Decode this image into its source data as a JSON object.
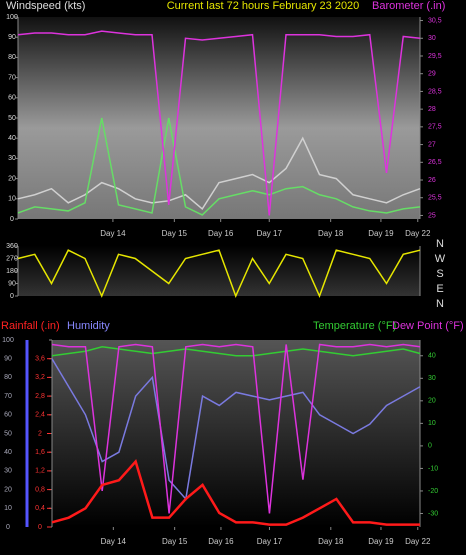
{
  "chart_data": [
    {
      "type": "line",
      "title": "Current last 72 hours February 23 2020",
      "ylabel": "Windspeed (kts)",
      "y2label": "Barometer (.in)",
      "x": [
        0,
        3,
        6,
        9,
        12,
        15,
        18,
        21,
        24,
        27,
        30,
        33,
        36,
        39,
        42,
        45,
        48,
        51,
        54,
        57,
        60,
        63,
        66,
        69,
        72
      ],
      "xlim": [
        0,
        72
      ],
      "xticks": [
        {
          "value": 17,
          "label": "Day 14"
        },
        {
          "value": 28,
          "label": "Day 15"
        },
        {
          "value": 36.3,
          "label": "Day 16"
        },
        {
          "value": 45,
          "label": "Day 17"
        },
        {
          "value": 56,
          "label": "Day 18"
        },
        {
          "value": 65,
          "label": "Day 19"
        },
        {
          "value": 71.6,
          "label": "Day 22"
        }
      ],
      "ylim": [
        0,
        100
      ],
      "yticks": [
        0,
        10,
        20,
        30,
        40,
        50,
        60,
        70,
        80,
        90,
        100
      ],
      "y2lim": [
        24.9,
        30.6
      ],
      "y2ticks": [
        25,
        {
          "value": 25.5,
          "label": "25,5"
        },
        26,
        {
          "value": 26.5,
          "label": "26,5"
        },
        27,
        {
          "value": 27.5,
          "label": "27,5"
        },
        28,
        {
          "value": 28.5,
          "label": "28,5"
        },
        29,
        {
          "value": 29.5,
          "label": "29,5"
        },
        30,
        {
          "value": 30.5,
          "label": "30,5"
        }
      ],
      "series": [
        {
          "color": "#d0d0d0",
          "values": [
            10,
            12,
            15,
            8,
            12,
            18,
            15,
            10,
            8,
            9,
            12,
            5,
            18,
            20,
            22,
            18,
            25,
            40,
            22,
            20,
            12,
            10,
            8,
            12,
            15
          ]
        },
        {
          "color": "#66dd66",
          "values": [
            3,
            6,
            5,
            4,
            8,
            50,
            7,
            5,
            3,
            50,
            6,
            2,
            10,
            12,
            14,
            12,
            15,
            16,
            12,
            10,
            6,
            4,
            3,
            5,
            6
          ]
        },
        {
          "color": "#dd33dd",
          "axis": "y2",
          "values": [
            30.1,
            30.15,
            30.15,
            30.1,
            30.1,
            30.2,
            30.15,
            30.1,
            30.1,
            25.3,
            30.0,
            29.95,
            30.0,
            30.05,
            30.1,
            25.0,
            30.1,
            30.1,
            30.1,
            30.05,
            30.05,
            30.1,
            26.2,
            30.05,
            30.0
          ]
        }
      ]
    },
    {
      "type": "line",
      "compass": [
        "N",
        "W",
        "S",
        "E",
        "N"
      ],
      "x": [
        0,
        3,
        6,
        9,
        12,
        15,
        18,
        21,
        24,
        27,
        30,
        33,
        36,
        39,
        42,
        45,
        48,
        51,
        54,
        57,
        60,
        63,
        66,
        69,
        72
      ],
      "xlim": [
        0,
        72
      ],
      "ylim": [
        0,
        360
      ],
      "yticks": [
        0,
        90,
        180,
        270,
        360
      ],
      "series": [
        {
          "color": "#e6e600",
          "values": [
            270,
            300,
            90,
            330,
            270,
            0,
            300,
            270,
            180,
            90,
            270,
            300,
            330,
            0,
            270,
            90,
            300,
            270,
            0,
            330,
            300,
            270,
            90,
            300,
            330
          ]
        }
      ]
    },
    {
      "type": "line",
      "y3label": "Rainfall (.in)",
      "ylabel": "Humidity",
      "y2label": "Temperature (°F)",
      "y2label_b": "Dew Point (°F)",
      "x": [
        6,
        9,
        12,
        15,
        18,
        21,
        24,
        27,
        30,
        33,
        36,
        39,
        42,
        45,
        48,
        51,
        54,
        57,
        60,
        63,
        66,
        69,
        72
      ],
      "xlim": [
        6,
        72
      ],
      "xticks": [
        {
          "value": 17,
          "label": "Day 14"
        },
        {
          "value": 28,
          "label": "Day 15"
        },
        {
          "value": 36.3,
          "label": "Day 16"
        },
        {
          "value": 45,
          "label": "Day 17"
        },
        {
          "value": 56,
          "label": "Day 18"
        },
        {
          "value": 65,
          "label": "Day 19"
        },
        {
          "value": 71.6,
          "label": "Day 22"
        }
      ],
      "ylim": [
        0,
        100
      ],
      "yticks": [
        0,
        10,
        20,
        30,
        40,
        50,
        60,
        70,
        80,
        90,
        100
      ],
      "y2lim": [
        -36,
        47
      ],
      "y2ticks": [
        -30,
        -20,
        -10,
        0,
        10,
        20,
        30,
        40
      ],
      "y3lim": [
        0,
        4
      ],
      "y3ticks": [
        0,
        {
          "value": 0.4,
          "label": "0,4"
        },
        {
          "value": 0.8,
          "label": "0,8"
        },
        {
          "value": 1.2,
          "label": "1,2"
        },
        {
          "value": 1.6,
          "label": "1,6"
        },
        2,
        {
          "value": 2.4,
          "label": "2,4"
        },
        {
          "value": 2.8,
          "label": "2,8"
        },
        {
          "value": 3.2,
          "label": "3,2"
        },
        {
          "value": 3.6,
          "label": "3,6"
        }
      ],
      "series": [
        {
          "color": "#7a7ae0",
          "values": [
            90,
            75,
            60,
            35,
            40,
            70,
            80,
            25,
            15,
            70,
            65,
            72,
            70,
            68,
            70,
            72,
            60,
            55,
            50,
            55,
            65,
            70,
            75
          ]
        },
        {
          "color": "#33cc33",
          "axis": "y2",
          "values": [
            40,
            41,
            42,
            44,
            43,
            42,
            41,
            42,
            43,
            42,
            41,
            40,
            40,
            41,
            42,
            43,
            42,
            41,
            40,
            41,
            42,
            43,
            41
          ]
        },
        {
          "color": "#dd33dd",
          "axis": "y2",
          "values": [
            45,
            44,
            44,
            -20,
            44,
            45,
            44,
            -30,
            44,
            45,
            44,
            45,
            44,
            -30,
            45,
            -15,
            45,
            44,
            44,
            45,
            44,
            45,
            44
          ]
        },
        {
          "color": "#ff1a1a",
          "axis": "y3",
          "values": [
            0.1,
            0.2,
            0.4,
            0.9,
            1.0,
            1.4,
            0.2,
            0.2,
            0.6,
            0.9,
            0.3,
            0.1,
            0.1,
            0.05,
            0.05,
            0.2,
            0.4,
            0.6,
            0.1,
            0.1,
            0.05,
            0.05,
            0.05
          ]
        }
      ]
    }
  ]
}
